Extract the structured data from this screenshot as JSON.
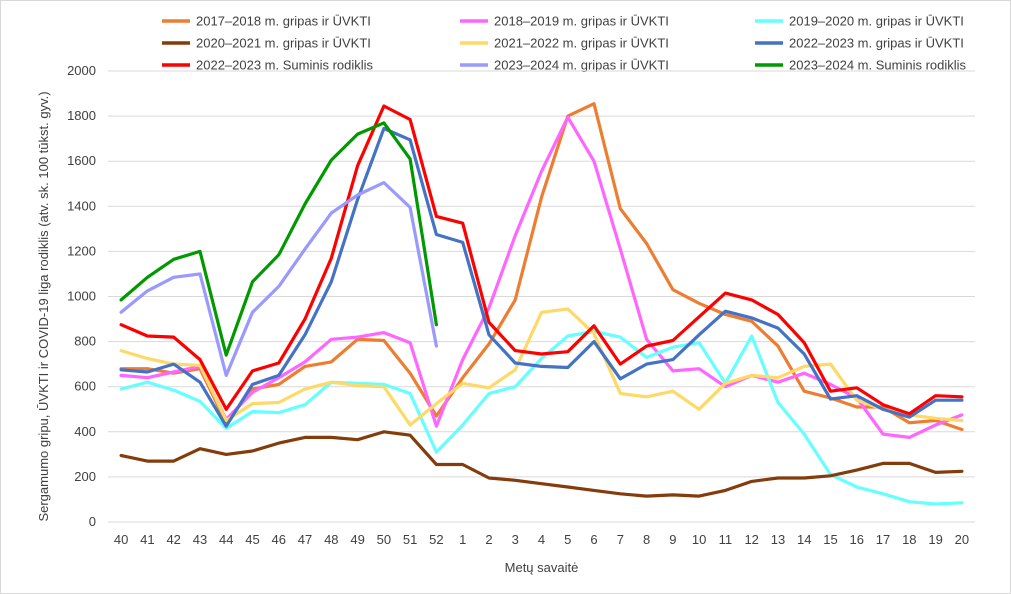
{
  "chart_data": {
    "type": "line",
    "title": "",
    "xlabel": "Metų savaitė",
    "ylabel": "Sergamumo gripu, ŪVKTI ir COVID-19 liga rodiklis (atv. sk. 100 tūkst. gyv.)",
    "ylim": [
      0,
      2000
    ],
    "yticks": [
      "0",
      "200",
      "400",
      "600",
      "800",
      "1000",
      "1200",
      "1400",
      "1600",
      "1800",
      "2000"
    ],
    "grid": "horizontal",
    "legend_position": "top",
    "categories": [
      "40",
      "41",
      "42",
      "43",
      "44",
      "45",
      "46",
      "47",
      "48",
      "49",
      "50",
      "51",
      "52",
      "1",
      "2",
      "3",
      "4",
      "5",
      "6",
      "7",
      "8",
      "9",
      "10",
      "11",
      "12",
      "13",
      "14",
      "15",
      "16",
      "17",
      "18",
      "19",
      "20"
    ],
    "series": [
      {
        "name": "2017–2018 m. gripas ir ŪVKTI",
        "color": "#ED7D31",
        "values": [
          680,
          680,
          660,
          680,
          440,
          590,
          610,
          690,
          710,
          810,
          805,
          660,
          470,
          640,
          790,
          985,
          1440,
          1800,
          1855,
          1390,
          1235,
          1030,
          970,
          920,
          890,
          780,
          580,
          550,
          510,
          510,
          440,
          450,
          410
        ]
      },
      {
        "name": "2018–2019 m. gripas ir ŪVKTI",
        "color": "#FF66FF",
        "values": [
          650,
          640,
          665,
          690,
          455,
          575,
          640,
          710,
          810,
          820,
          840,
          795,
          425,
          720,
          950,
          1270,
          1555,
          1795,
          1600,
          1210,
          810,
          670,
          680,
          600,
          650,
          620,
          660,
          610,
          550,
          390,
          375,
          430,
          475
        ]
      },
      {
        "name": "2019–2020 m. gripas ir ŪVKTI",
        "color": "#66FFFF",
        "values": [
          590,
          620,
          585,
          535,
          415,
          490,
          485,
          520,
          620,
          615,
          610,
          570,
          310,
          430,
          570,
          600,
          725,
          825,
          845,
          820,
          730,
          775,
          795,
          615,
          825,
          530,
          390,
          210,
          155,
          125,
          90,
          80,
          85
        ]
      },
      {
        "name": "2020–2021 m. gripas ir ŪVKTI",
        "color": "#843C0C",
        "values": [
          295,
          270,
          270,
          325,
          300,
          315,
          350,
          375,
          375,
          365,
          400,
          385,
          255,
          255,
          195,
          185,
          170,
          155,
          140,
          125,
          115,
          120,
          115,
          140,
          180,
          195,
          195,
          205,
          230,
          260,
          260,
          220,
          225
        ]
      },
      {
        "name": "2021–2022 m. gripas ir ŪVKTI",
        "color": "#FFD966",
        "values": [
          760,
          725,
          700,
          695,
          450,
          525,
          530,
          590,
          620,
          605,
          600,
          430,
          525,
          615,
          595,
          675,
          930,
          945,
          835,
          570,
          555,
          580,
          500,
          615,
          650,
          640,
          690,
          700,
          540,
          500,
          475,
          460,
          450
        ]
      },
      {
        "name": "2022–2023 m. gripas ir ŪVKTI",
        "color": "#4472C4",
        "values": [
          675,
          665,
          700,
          620,
          425,
          610,
          650,
          830,
          1065,
          1430,
          1745,
          1695,
          1275,
          1240,
          830,
          705,
          690,
          685,
          800,
          635,
          700,
          720,
          830,
          935,
          905,
          860,
          745,
          545,
          560,
          500,
          465,
          540,
          540
        ]
      },
      {
        "name": "2022–2023 m. Suminis rodiklis",
        "color": "#FF0000",
        "values": [
          875,
          825,
          820,
          720,
          500,
          670,
          705,
          900,
          1170,
          1580,
          1845,
          1785,
          1355,
          1325,
          885,
          760,
          745,
          755,
          870,
          700,
          780,
          805,
          910,
          1015,
          985,
          920,
          795,
          580,
          595,
          520,
          480,
          560,
          555
        ]
      },
      {
        "name": "2023–2024 m. gripas ir ŪVKTI",
        "color": "#9999FF",
        "values": [
          930,
          1025,
          1085,
          1100,
          650,
          930,
          1045,
          1210,
          1370,
          1450,
          1505,
          1395,
          780,
          null,
          null,
          null,
          null,
          null,
          null,
          null,
          null,
          null,
          null,
          null,
          null,
          null,
          null,
          null,
          null,
          null,
          null,
          null,
          null
        ]
      },
      {
        "name": "2023–2024 m. Suminis rodiklis",
        "color": "#009900",
        "values": [
          985,
          1085,
          1165,
          1200,
          740,
          1065,
          1185,
          1410,
          1605,
          1720,
          1770,
          1610,
          875,
          null,
          null,
          null,
          null,
          null,
          null,
          null,
          null,
          null,
          null,
          null,
          null,
          null,
          null,
          null,
          null,
          null,
          null,
          null,
          null
        ]
      }
    ]
  }
}
